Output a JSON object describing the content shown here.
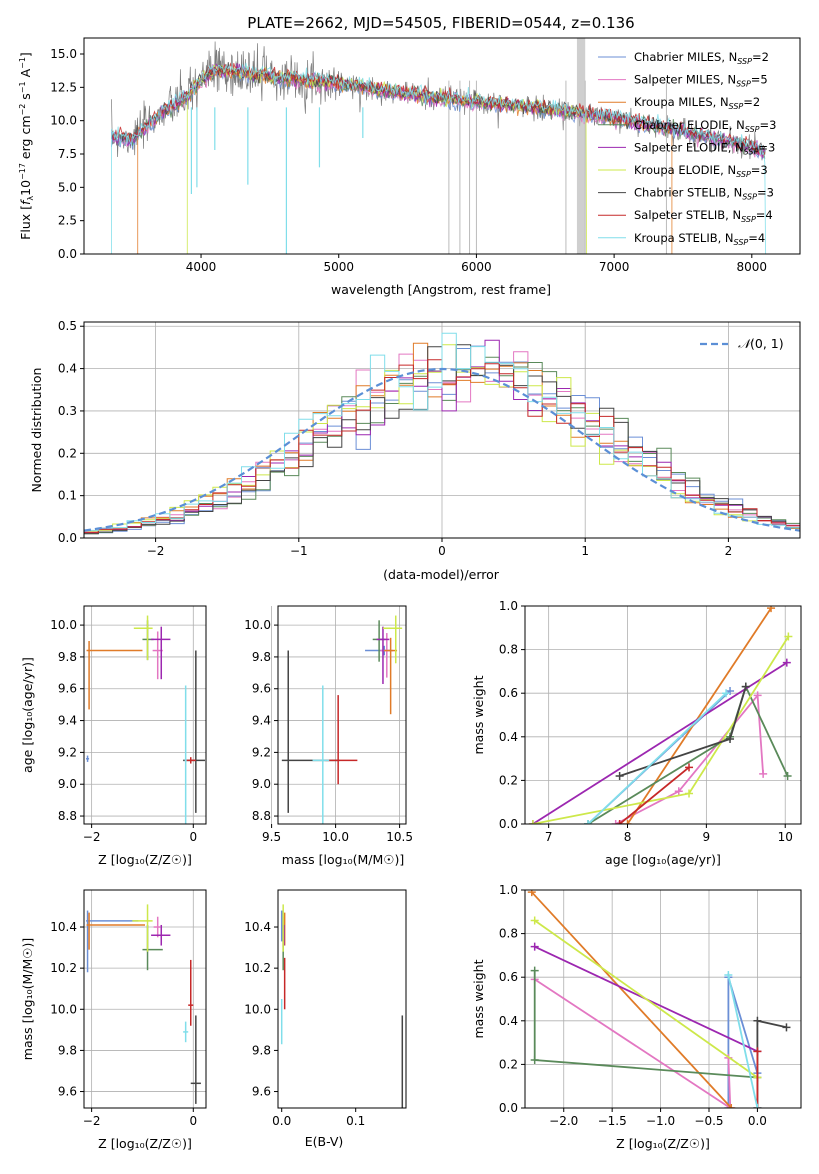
{
  "figure_title": "PLATE=2662, MJD=54505, FIBERID=0544, z=0.136",
  "series_styles": [
    {
      "name": "Chabrier MILES",
      "nssp": "2",
      "color": "#6b8fd6"
    },
    {
      "name": "Salpeter MILES",
      "nssp": "5",
      "color": "#e377c2"
    },
    {
      "name": "Kroupa MILES",
      "nssp": "2",
      "color": "#e07b28"
    },
    {
      "name": "Chabrier ELODIE",
      "nssp": "3",
      "color": "#5a8a5a"
    },
    {
      "name": "Salpeter ELODIE",
      "nssp": "3",
      "color": "#9c27b0"
    },
    {
      "name": "Kroupa ELODIE",
      "nssp": "3",
      "color": "#cde84a"
    },
    {
      "name": "Chabrier STELIB",
      "nssp": "3",
      "color": "#444444"
    },
    {
      "name": "Salpeter STELIB",
      "nssp": "4",
      "color": "#c62828"
    },
    {
      "name": "Kroupa STELIB",
      "nssp": "4",
      "color": "#80deea"
    }
  ],
  "chart_data": [
    {
      "id": "spectrum",
      "type": "line",
      "xlabel": "wavelength [Angstrom, rest frame]",
      "ylabel": "Flux [fλ10⁻¹⁷ erg cm⁻² s⁻¹ A⁻¹]",
      "xlim": [
        3150,
        8350
      ],
      "ylim": [
        0,
        16.2
      ],
      "xticks": [
        4000,
        5000,
        6000,
        7000,
        8000
      ],
      "yticks": [
        0.0,
        2.5,
        5.0,
        7.5,
        10.0,
        12.5,
        15.0
      ],
      "grid": false,
      "legend_position": "top-right",
      "legend": [
        "Chabrier MILES, N_SSP=2",
        "Salpeter MILES, N_SSP=5",
        "Kroupa MILES, N_SSP=2",
        "Chabrier ELODIE, N_SSP=3",
        "Salpeter ELODIE, N_SSP=3",
        "Kroupa ELODIE, N_SSP=3",
        "Chabrier STELIB, N_SSP=3",
        "Salpeter STELIB, N_SSP=4",
        "Kroupa STELIB, N_SSP=4"
      ],
      "data_envelope": {
        "x": [
          3350,
          3500,
          3700,
          3900,
          4000,
          4100,
          4300,
          4600,
          5000,
          5500,
          6000,
          6500,
          7000,
          7500,
          8000,
          8100
        ],
        "y": [
          8.8,
          8.6,
          10.5,
          11.8,
          13.0,
          13.8,
          13.6,
          13.2,
          12.8,
          12.0,
          11.4,
          10.9,
          10.2,
          9.2,
          8.0,
          7.5
        ]
      }
    },
    {
      "id": "residuals",
      "type": "histogram",
      "xlabel": "(data-model)/error",
      "ylabel": "Normed distribution",
      "xlim": [
        -2.5,
        2.5
      ],
      "ylim": [
        0,
        0.51
      ],
      "xticks": [
        -2,
        -1,
        0,
        1,
        2
      ],
      "yticks": [
        0.0,
        0.1,
        0.2,
        0.3,
        0.4,
        0.5
      ],
      "grid": true,
      "legend_position": "top-right",
      "legend": [
        "N(0,1)"
      ],
      "reference_curve": "standard normal, peak 0.399"
    },
    {
      "id": "age_vs_Z",
      "type": "scatter",
      "xlabel": "Z [log10(Z/Z☉)]",
      "ylabel": "age  [log10(age/yr)]",
      "xlim": [
        -2.15,
        0.25
      ],
      "ylim": [
        8.75,
        10.12
      ],
      "xticks": [
        -2,
        0
      ],
      "yticks": [
        8.8,
        9.0,
        9.2,
        9.4,
        9.6,
        9.8,
        10.0
      ],
      "grid": true,
      "series": [
        {
          "name": "Chabrier MILES",
          "x": -2.08,
          "y": 9.16,
          "xerr": [
            0.03,
            0.03
          ],
          "yerr": [
            0.02,
            0.02
          ]
        },
        {
          "name": "Salpeter MILES",
          "x": -0.7,
          "y": 9.84,
          "xerr": [
            0.1,
            0.1
          ],
          "yerr": [
            0.18,
            0.12
          ]
        },
        {
          "name": "Kroupa MILES",
          "x": -2.05,
          "y": 9.84,
          "xerr": [
            0.05,
            1.05
          ],
          "yerr": [
            0.37,
            0.06
          ]
        },
        {
          "name": "Chabrier ELODIE",
          "x": -0.9,
          "y": 9.91,
          "xerr": [
            0.1,
            0.12
          ],
          "yerr": [
            0.13,
            0.12
          ]
        },
        {
          "name": "Salpeter ELODIE",
          "x": -0.63,
          "y": 9.91,
          "xerr": [
            0.2,
            0.18
          ],
          "yerr": [
            0.25,
            0.08
          ]
        },
        {
          "name": "Kroupa ELODIE",
          "x": -0.9,
          "y": 9.98,
          "xerr": [
            0.27,
            0.1
          ],
          "yerr": [
            0.2,
            0.08
          ]
        },
        {
          "name": "Chabrier STELIB",
          "x": 0.05,
          "y": 9.15,
          "xerr": [
            0.25,
            0.18
          ],
          "yerr": [
            0.33,
            0.69
          ]
        },
        {
          "name": "Salpeter STELIB",
          "x": -0.05,
          "y": 9.15,
          "xerr": [
            0.1,
            0.1
          ],
          "yerr": [
            0.02,
            0.02
          ]
        },
        {
          "name": "Kroupa STELIB",
          "x": -0.15,
          "y": 9.15,
          "xerr": [
            0.02,
            0.02
          ],
          "yerr": [
            0.55,
            0.47
          ]
        }
      ]
    },
    {
      "id": "age_vs_mass",
      "type": "scatter",
      "xlabel": "mass [log10(M/M☉)]",
      "ylabel": "",
      "xlim": [
        9.55,
        10.55
      ],
      "ylim": [
        8.75,
        10.12
      ],
      "xticks": [
        9.5,
        10.0,
        10.5
      ],
      "yticks": [
        8.8,
        9.0,
        9.2,
        9.4,
        9.6,
        9.8,
        10.0
      ],
      "grid": true,
      "series": [
        {
          "name": "Chabrier MILES",
          "x": 10.38,
          "y": 9.84,
          "xerr": [
            0.15,
            0.05
          ],
          "yerr": [
            0.03,
            0.03
          ]
        },
        {
          "name": "Salpeter MILES",
          "x": 10.4,
          "y": 9.84,
          "xerr": [
            0.05,
            0.05
          ],
          "yerr": [
            0.17,
            0.11
          ]
        },
        {
          "name": "Kroupa MILES",
          "x": 10.43,
          "y": 9.84,
          "xerr": [
            0.05,
            0.05
          ],
          "yerr": [
            0.4,
            0.08
          ]
        },
        {
          "name": "Chabrier ELODIE",
          "x": 10.34,
          "y": 9.91,
          "xerr": [
            0.05,
            0.05
          ],
          "yerr": [
            0.14,
            0.12
          ]
        },
        {
          "name": "Salpeter ELODIE",
          "x": 10.37,
          "y": 9.91,
          "xerr": [
            0.05,
            0.05
          ],
          "yerr": [
            0.28,
            0.08
          ]
        },
        {
          "name": "Kroupa ELODIE",
          "x": 10.47,
          "y": 9.98,
          "xerr": [
            0.1,
            0.05
          ],
          "yerr": [
            0.22,
            0.08
          ]
        },
        {
          "name": "Chabrier STELIB",
          "x": 9.63,
          "y": 9.15,
          "xerr": [
            0.05,
            0.4
          ],
          "yerr": [
            0.33,
            0.69
          ]
        },
        {
          "name": "Salpeter STELIB",
          "x": 10.02,
          "y": 9.15,
          "xerr": [
            0.1,
            0.15
          ],
          "yerr": [
            0.15,
            0.41
          ]
        },
        {
          "name": "Kroupa STELIB",
          "x": 9.9,
          "y": 9.15,
          "xerr": [
            0.08,
            0.05
          ],
          "yerr": [
            0.4,
            0.47
          ]
        }
      ]
    },
    {
      "id": "weight_vs_age",
      "type": "line",
      "xlabel": "age  [log10(age/yr)]",
      "ylabel": "mass weight",
      "xlim": [
        6.7,
        10.2
      ],
      "ylim": [
        0,
        1
      ],
      "xticks": [
        7,
        8,
        9,
        10
      ],
      "yticks": [
        0.0,
        0.2,
        0.4,
        0.6,
        0.8,
        1.0
      ],
      "grid": true,
      "series": [
        {
          "name": "Chabrier MILES",
          "x": [
            7.5,
            9.3
          ],
          "y": [
            0.0,
            0.61
          ]
        },
        {
          "name": "Salpeter MILES",
          "x": [
            7.85,
            8.65,
            9.65,
            9.72
          ],
          "y": [
            0.0,
            0.15,
            0.59,
            0.23
          ]
        },
        {
          "name": "Kroupa MILES",
          "x": [
            8.0,
            9.82
          ],
          "y": [
            0.0,
            0.99
          ]
        },
        {
          "name": "Chabrier ELODIE",
          "x": [
            7.5,
            9.3,
            9.5,
            10.03
          ],
          "y": [
            0.0,
            0.4,
            0.63,
            0.22
          ]
        },
        {
          "name": "Salpeter ELODIE",
          "x": [
            6.8,
            10.02
          ],
          "y": [
            0.0,
            0.74
          ]
        },
        {
          "name": "Kroupa ELODIE",
          "x": [
            6.8,
            8.78,
            10.04
          ],
          "y": [
            0.0,
            0.14,
            0.86
          ]
        },
        {
          "name": "Chabrier STELIB",
          "x": [
            7.9,
            9.3,
            9.5
          ],
          "y": [
            0.22,
            0.39,
            0.63
          ]
        },
        {
          "name": "Salpeter STELIB",
          "x": [
            7.9,
            8.78
          ],
          "y": [
            0.0,
            0.26
          ]
        },
        {
          "name": "Kroupa STELIB",
          "x": [
            7.5,
            9.25
          ],
          "y": [
            0.0,
            0.6
          ]
        }
      ]
    },
    {
      "id": "mass_vs_Z",
      "type": "scatter",
      "xlabel": "Z [log10(Z/Z☉)]",
      "ylabel": "mass [log10(M/M☉)]",
      "xlim": [
        -2.15,
        0.25
      ],
      "ylim": [
        9.52,
        10.58
      ],
      "xticks": [
        -2,
        0
      ],
      "yticks": [
        9.6,
        9.8,
        10.0,
        10.2,
        10.4
      ],
      "grid": true,
      "series": [
        {
          "name": "Chabrier MILES",
          "x": -2.08,
          "y": 10.43,
          "xerr": [
            0.03,
            1.0
          ],
          "yerr": [
            0.25,
            0.05
          ]
        },
        {
          "name": "Salpeter MILES",
          "x": -0.7,
          "y": 10.4,
          "xerr": [
            0.08,
            0.05
          ],
          "yerr": [
            0.05,
            0.05
          ]
        },
        {
          "name": "Kroupa MILES",
          "x": -2.05,
          "y": 10.41,
          "xerr": [
            0.05,
            1.1
          ],
          "yerr": [
            0.12,
            0.06
          ]
        },
        {
          "name": "Chabrier ELODIE",
          "x": -0.9,
          "y": 10.29,
          "xerr": [
            0.1,
            0.3
          ],
          "yerr": [
            0.1,
            0.12
          ]
        },
        {
          "name": "Salpeter ELODIE",
          "x": -0.63,
          "y": 10.36,
          "xerr": [
            0.2,
            0.18
          ],
          "yerr": [
            0.05,
            0.05
          ]
        },
        {
          "name": "Kroupa ELODIE",
          "x": -0.9,
          "y": 10.43,
          "xerr": [
            0.3,
            0.1
          ],
          "yerr": [
            0.15,
            0.08
          ]
        },
        {
          "name": "Chabrier STELIB",
          "x": 0.05,
          "y": 9.64,
          "xerr": [
            0.1,
            0.1
          ],
          "yerr": [
            0.1,
            0.33
          ]
        },
        {
          "name": "Salpeter STELIB",
          "x": -0.05,
          "y": 10.02,
          "xerr": [
            0.05,
            0.05
          ],
          "yerr": [
            0.1,
            0.22
          ]
        },
        {
          "name": "Kroupa STELIB",
          "x": -0.15,
          "y": 9.89,
          "xerr": [
            0.05,
            0.05
          ],
          "yerr": [
            0.05,
            0.05
          ]
        }
      ]
    },
    {
      "id": "mass_vs_ebv",
      "type": "scatter",
      "xlabel": "E(B-V)",
      "ylabel": "",
      "xlim": [
        -0.005,
        0.168
      ],
      "ylim": [
        9.52,
        10.58
      ],
      "xticks": [
        0.0,
        0.1
      ],
      "yticks": [
        9.6,
        9.8,
        10.0,
        10.2,
        10.4
      ],
      "grid": false,
      "series": [
        {
          "name": "Chabrier MILES",
          "x": 0.0,
          "y": 10.43,
          "yerr": [
            0.1,
            0.05
          ]
        },
        {
          "name": "Salpeter MILES",
          "x": 0.002,
          "y": 10.4,
          "yerr": [
            0.1,
            0.05
          ]
        },
        {
          "name": "Kroupa MILES",
          "x": 0.004,
          "y": 10.41,
          "yerr": [
            0.1,
            0.06
          ]
        },
        {
          "name": "Chabrier ELODIE",
          "x": 0.002,
          "y": 10.29,
          "yerr": [
            0.1,
            0.12
          ]
        },
        {
          "name": "Salpeter ELODIE",
          "x": 0.003,
          "y": 10.36,
          "yerr": [
            0.05,
            0.05
          ]
        },
        {
          "name": "Kroupa ELODIE",
          "x": 0.002,
          "y": 10.43,
          "yerr": [
            0.15,
            0.08
          ]
        },
        {
          "name": "Chabrier STELIB",
          "x": 0.163,
          "y": 9.64,
          "yerr": [
            0.12,
            0.33
          ]
        },
        {
          "name": "Salpeter STELIB",
          "x": 0.004,
          "y": 10.1,
          "yerr": [
            0.1,
            0.15
          ]
        },
        {
          "name": "Kroupa STELIB",
          "x": 0.0,
          "y": 9.93,
          "yerr": [
            0.1,
            0.12
          ]
        }
      ]
    },
    {
      "id": "weight_vs_Z",
      "type": "line",
      "xlabel": "Z [log10(Z/Z☉)]",
      "ylabel": "mass weight",
      "xlim": [
        -2.4,
        0.45
      ],
      "ylim": [
        0,
        1
      ],
      "xticks": [
        -2.0,
        -1.5,
        -1.0,
        -0.5,
        0.0
      ],
      "yticks": [
        0.0,
        0.2,
        0.4,
        0.6,
        0.8,
        1.0
      ],
      "grid": true,
      "series": [
        {
          "name": "Chabrier MILES",
          "x": [
            -0.3,
            -0.3,
            0.0
          ],
          "y": [
            0.0,
            0.6,
            0.16
          ]
        },
        {
          "name": "Salpeter MILES",
          "x": [
            -2.3,
            -0.28,
            -0.3
          ],
          "y": [
            0.59,
            0.0,
            0.23
          ]
        },
        {
          "name": "Kroupa MILES",
          "x": [
            -2.33,
            -0.27
          ],
          "y": [
            0.99,
            0.0
          ]
        },
        {
          "name": "Chabrier ELODIE",
          "x": [
            -2.3,
            -2.3,
            0.0
          ],
          "y": [
            0.63,
            0.22,
            0.14
          ]
        },
        {
          "name": "Salpeter ELODIE",
          "x": [
            -2.3,
            0.0
          ],
          "y": [
            0.74,
            0.26
          ]
        },
        {
          "name": "Kroupa ELODIE",
          "x": [
            -2.3,
            0.0
          ],
          "y": [
            0.86,
            0.14
          ]
        },
        {
          "name": "Chabrier STELIB",
          "x": [
            0.0,
            0.0,
            0.3
          ],
          "y": [
            0.0,
            0.4,
            0.37
          ]
        },
        {
          "name": "Salpeter STELIB",
          "x": [
            0.0,
            0.0
          ],
          "y": [
            0.0,
            0.26
          ]
        },
        {
          "name": "Kroupa STELIB",
          "x": [
            -0.3,
            0.0
          ],
          "y": [
            0.61,
            0.0
          ]
        }
      ]
    }
  ]
}
